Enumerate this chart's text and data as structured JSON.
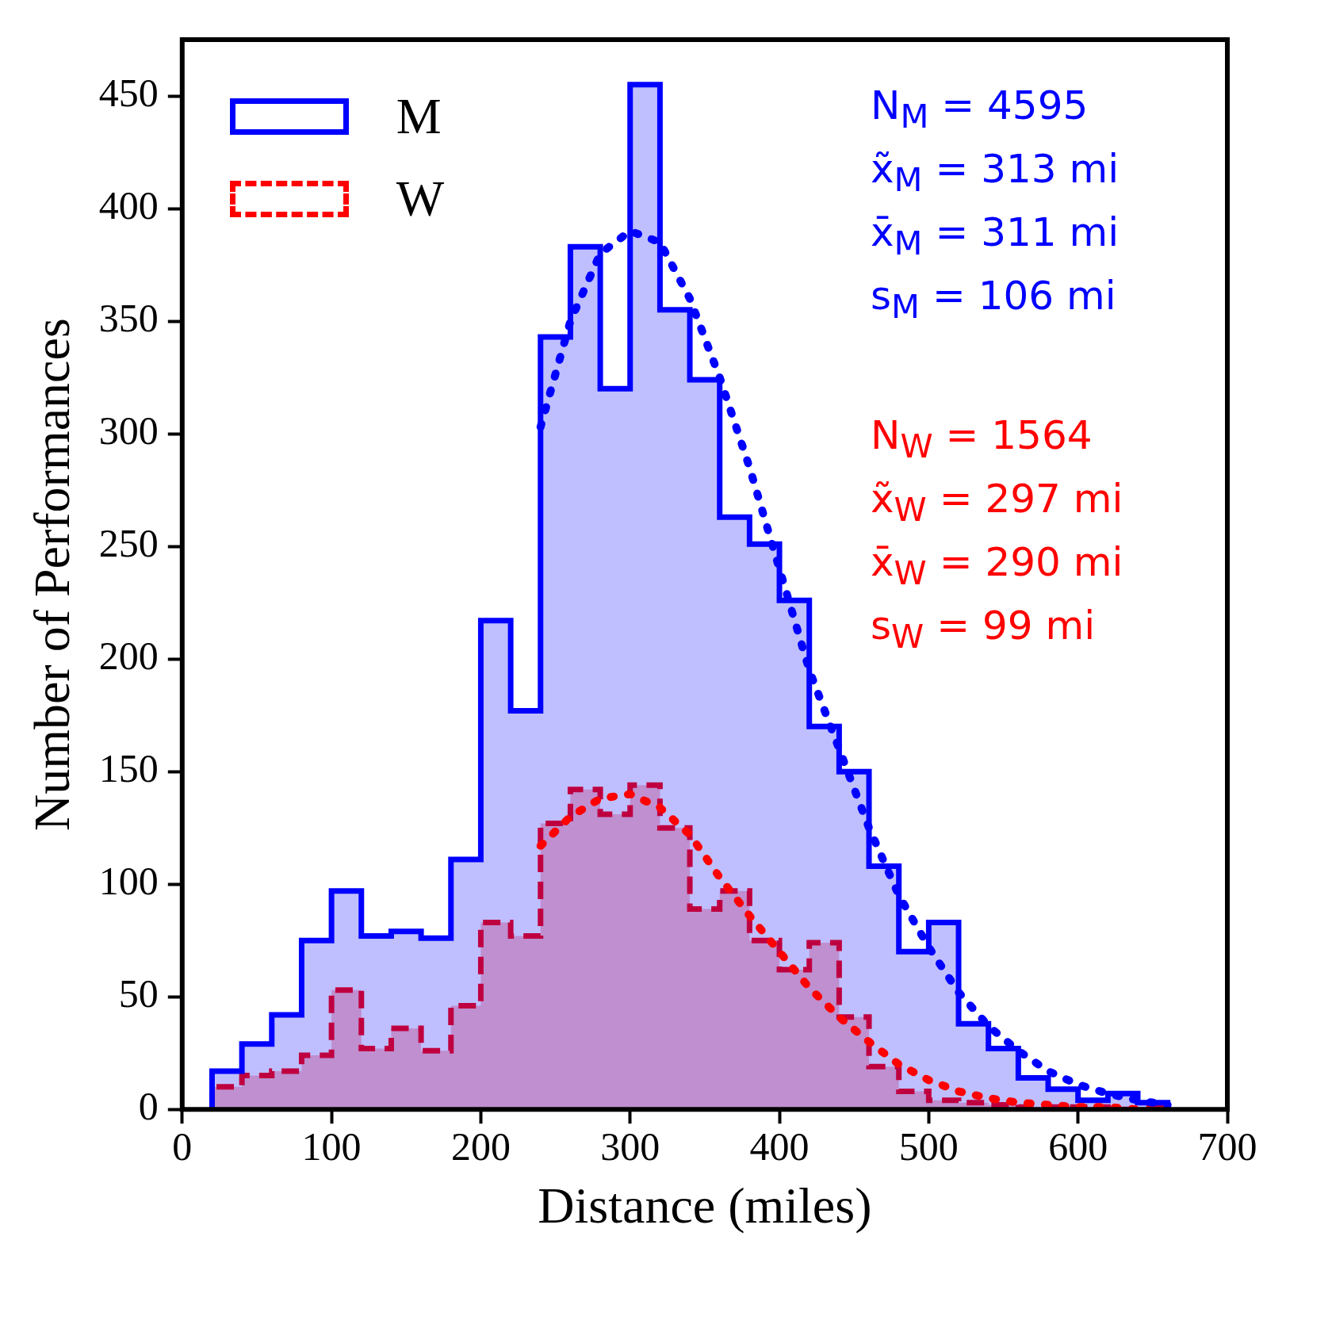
{
  "chart_data": {
    "type": "histogram",
    "xlabel": "Distance (miles)",
    "ylabel": "Number of Performances",
    "bins": [
      20,
      40,
      60,
      80,
      100,
      120,
      140,
      160,
      180,
      200,
      220,
      240,
      260,
      280,
      300,
      320,
      340,
      360,
      380,
      400,
      420,
      440,
      460,
      480,
      500,
      520,
      540,
      560,
      580,
      600,
      620,
      640,
      660
    ],
    "series": [
      {
        "name": "M",
        "color": "#0000ff",
        "line_style": "solid",
        "values": [
          17,
          29,
          42,
          75,
          97,
          77,
          79,
          76,
          111,
          217,
          177,
          343,
          383,
          320,
          455,
          355,
          324,
          263,
          251,
          226,
          170,
          150,
          108,
          70,
          83,
          38,
          27,
          14,
          9,
          4,
          7,
          3
        ]
      },
      {
        "name": "W",
        "color": "#ff0000",
        "line_style": "dashed",
        "values": [
          10,
          15,
          17,
          24,
          53,
          27,
          36,
          26,
          46,
          83,
          77,
          127,
          142,
          131,
          144,
          125,
          89,
          97,
          75,
          62,
          74,
          41,
          19,
          8,
          4,
          3,
          2,
          1,
          1,
          1,
          0,
          1
        ]
      },
      {
        "type": "line",
        "color": "#0000ff",
        "line_style": "dotted",
        "x": [
          240,
          260,
          280,
          300,
          320,
          340,
          360,
          380,
          400,
          420,
          440,
          460,
          480,
          500,
          520,
          540,
          560,
          580,
          600,
          620,
          640,
          660
        ],
        "values": [
          303,
          350,
          380,
          390,
          385,
          360,
          325,
          285,
          240,
          195,
          160,
          125,
          95,
          72,
          52,
          37,
          26,
          17,
          11,
          7,
          4,
          2
        ]
      },
      {
        "type": "line",
        "color": "#ff0000",
        "line_style": "dotted",
        "x": [
          240,
          260,
          280,
          300,
          320,
          340,
          360,
          380,
          400,
          420,
          440,
          460,
          480,
          500,
          520,
          540,
          560,
          580,
          600,
          620,
          640,
          660
        ],
        "values": [
          117,
          130,
          138,
          140,
          134,
          122,
          103,
          86,
          70,
          54,
          41,
          30,
          20,
          13,
          8,
          5,
          3,
          2,
          1,
          1,
          0,
          0
        ]
      }
    ],
    "xlim": [
      0,
      700
    ],
    "xticks": [
      0,
      100,
      200,
      300,
      400,
      500,
      600,
      700
    ],
    "ylim": [
      0,
      475
    ],
    "yticks": [
      0,
      50,
      100,
      150,
      200,
      250,
      300,
      350,
      400,
      450
    ],
    "legend": "top left",
    "grid": false,
    "annotations": [
      "N$_{M}$ = 4595",
      "x̃$_{M}$ = 313 mi",
      "x̄$_{M}$ = 311 mi",
      "s$_{M}$ = 106 mi",
      "N$_{W}$ = 1564",
      "x̃$_{W}$ = 297 mi",
      "x̄$_{W}$ = 290 mi",
      "s$_{W}$ = 99 mi"
    ]
  }
}
